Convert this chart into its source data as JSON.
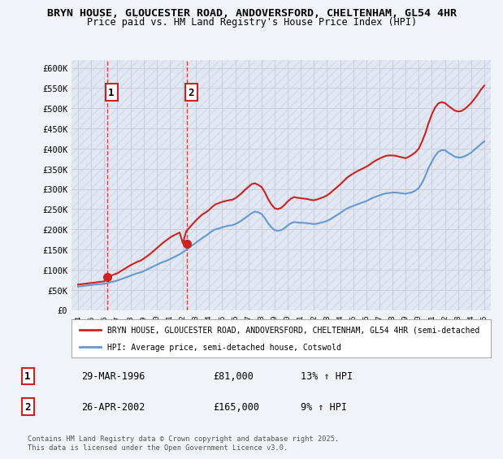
{
  "title_line1": "BRYN HOUSE, GLOUCESTER ROAD, ANDOVERSFORD, CHELTENHAM, GL54 4HR",
  "title_line2": "Price paid vs. HM Land Registry's House Price Index (HPI)",
  "ylabel_ticks": [
    "£0",
    "£50K",
    "£100K",
    "£150K",
    "£200K",
    "£250K",
    "£300K",
    "£350K",
    "£400K",
    "£450K",
    "£500K",
    "£550K",
    "£600K"
  ],
  "ytick_values": [
    0,
    50000,
    100000,
    150000,
    200000,
    250000,
    300000,
    350000,
    400000,
    450000,
    500000,
    550000,
    600000
  ],
  "ylim": [
    0,
    620000
  ],
  "xlim_start": 1993.5,
  "xlim_end": 2025.5,
  "xtick_years": [
    1994,
    1995,
    1996,
    1997,
    1998,
    1999,
    2000,
    2001,
    2002,
    2003,
    2004,
    2005,
    2006,
    2007,
    2008,
    2009,
    2010,
    2011,
    2012,
    2013,
    2014,
    2015,
    2016,
    2017,
    2018,
    2019,
    2020,
    2021,
    2022,
    2023,
    2024,
    2025
  ],
  "hpi_line_color": "#6699cc",
  "price_line_color": "#cc2222",
  "background_hatch_color": "#e8e8f0",
  "grid_color": "#ccccdd",
  "purchase_markers": [
    {
      "year": 1996.24,
      "price": 81000,
      "label": "1",
      "date": "29-MAR-1996",
      "amount": "£81,000",
      "hpi_note": "13% ↑ HPI"
    },
    {
      "year": 2002.32,
      "price": 165000,
      "label": "2",
      "date": "26-APR-2002",
      "amount": "£165,000",
      "hpi_note": "9% ↑ HPI"
    }
  ],
  "hpi_data_x": [
    1994.0,
    1994.25,
    1994.5,
    1994.75,
    1995.0,
    1995.25,
    1995.5,
    1995.75,
    1996.0,
    1996.25,
    1996.5,
    1996.75,
    1997.0,
    1997.25,
    1997.5,
    1997.75,
    1998.0,
    1998.25,
    1998.5,
    1998.75,
    1999.0,
    1999.25,
    1999.5,
    1999.75,
    2000.0,
    2000.25,
    2000.5,
    2000.75,
    2001.0,
    2001.25,
    2001.5,
    2001.75,
    2002.0,
    2002.25,
    2002.5,
    2002.75,
    2003.0,
    2003.25,
    2003.5,
    2003.75,
    2004.0,
    2004.25,
    2004.5,
    2004.75,
    2005.0,
    2005.25,
    2005.5,
    2005.75,
    2006.0,
    2006.25,
    2006.5,
    2006.75,
    2007.0,
    2007.25,
    2007.5,
    2007.75,
    2008.0,
    2008.25,
    2008.5,
    2008.75,
    2009.0,
    2009.25,
    2009.5,
    2009.75,
    2010.0,
    2010.25,
    2010.5,
    2010.75,
    2011.0,
    2011.25,
    2011.5,
    2011.75,
    2012.0,
    2012.25,
    2012.5,
    2012.75,
    2013.0,
    2013.25,
    2013.5,
    2013.75,
    2014.0,
    2014.25,
    2014.5,
    2014.75,
    2015.0,
    2015.25,
    2015.5,
    2015.75,
    2016.0,
    2016.25,
    2016.5,
    2016.75,
    2017.0,
    2017.25,
    2017.5,
    2017.75,
    2018.0,
    2018.25,
    2018.5,
    2018.75,
    2019.0,
    2019.25,
    2019.5,
    2019.75,
    2020.0,
    2020.25,
    2020.5,
    2020.75,
    2021.0,
    2021.25,
    2021.5,
    2021.75,
    2022.0,
    2022.25,
    2022.5,
    2022.75,
    2023.0,
    2023.25,
    2023.5,
    2023.75,
    2024.0,
    2024.25,
    2024.5,
    2024.75,
    2025.0
  ],
  "hpi_data_y": [
    58000,
    59000,
    60000,
    61000,
    62000,
    63000,
    63500,
    64000,
    65000,
    67000,
    69000,
    71000,
    73000,
    76000,
    79000,
    82000,
    85000,
    88000,
    91000,
    93000,
    96000,
    100000,
    104000,
    108000,
    112000,
    116000,
    119000,
    122000,
    126000,
    130000,
    134000,
    138000,
    143000,
    149000,
    155000,
    161000,
    167000,
    173000,
    179000,
    184000,
    190000,
    196000,
    200000,
    202000,
    205000,
    207000,
    209000,
    210000,
    213000,
    217000,
    222000,
    228000,
    234000,
    240000,
    244000,
    242000,
    238000,
    228000,
    215000,
    205000,
    198000,
    196000,
    198000,
    203000,
    210000,
    215000,
    218000,
    217000,
    216000,
    216000,
    215000,
    214000,
    213000,
    214000,
    216000,
    218000,
    221000,
    225000,
    230000,
    235000,
    240000,
    246000,
    251000,
    255000,
    258000,
    261000,
    264000,
    267000,
    270000,
    274000,
    278000,
    281000,
    284000,
    287000,
    289000,
    290000,
    291000,
    291000,
    290000,
    289000,
    288000,
    290000,
    292000,
    296000,
    302000,
    315000,
    332000,
    352000,
    368000,
    382000,
    392000,
    396000,
    396000,
    390000,
    385000,
    380000,
    378000,
    378000,
    381000,
    385000,
    390000,
    397000,
    404000,
    411000,
    418000
  ],
  "price_data_x": [
    1994.0,
    1994.25,
    1994.5,
    1994.75,
    1995.0,
    1995.25,
    1995.5,
    1995.75,
    1996.0,
    1996.25,
    1996.5,
    1996.75,
    1997.0,
    1997.25,
    1997.5,
    1997.75,
    1998.0,
    1998.25,
    1998.5,
    1998.75,
    1999.0,
    1999.25,
    1999.5,
    1999.75,
    2000.0,
    2000.25,
    2000.5,
    2000.75,
    2001.0,
    2001.25,
    2001.5,
    2001.75,
    2002.0,
    2002.25,
    2002.5,
    2002.75,
    2003.0,
    2003.25,
    2003.5,
    2003.75,
    2004.0,
    2004.25,
    2004.5,
    2004.75,
    2005.0,
    2005.25,
    2005.5,
    2005.75,
    2006.0,
    2006.25,
    2006.5,
    2006.75,
    2007.0,
    2007.25,
    2007.5,
    2007.75,
    2008.0,
    2008.25,
    2008.5,
    2008.75,
    2009.0,
    2009.25,
    2009.5,
    2009.75,
    2010.0,
    2010.25,
    2010.5,
    2010.75,
    2011.0,
    2011.25,
    2011.5,
    2011.75,
    2012.0,
    2012.25,
    2012.5,
    2012.75,
    2013.0,
    2013.25,
    2013.5,
    2013.75,
    2014.0,
    2014.25,
    2014.5,
    2014.75,
    2015.0,
    2015.25,
    2015.5,
    2015.75,
    2016.0,
    2016.25,
    2016.5,
    2016.75,
    2017.0,
    2017.25,
    2017.5,
    2017.75,
    2018.0,
    2018.25,
    2018.5,
    2018.75,
    2019.0,
    2019.25,
    2019.5,
    2019.75,
    2020.0,
    2020.25,
    2020.5,
    2020.75,
    2021.0,
    2021.25,
    2021.5,
    2021.75,
    2022.0,
    2022.25,
    2022.5,
    2022.75,
    2023.0,
    2023.25,
    2023.5,
    2023.75,
    2024.0,
    2024.25,
    2024.5,
    2024.75,
    2025.0
  ],
  "price_data_y": [
    63000,
    64000,
    65000,
    66000,
    67000,
    68000,
    69000,
    70000,
    71000,
    81000,
    85000,
    88000,
    91000,
    96000,
    101000,
    106000,
    111000,
    115000,
    119000,
    122000,
    127000,
    133000,
    139000,
    146000,
    153000,
    160000,
    167000,
    173000,
    179000,
    184000,
    188000,
    192000,
    165000,
    195000,
    204000,
    213000,
    222000,
    230000,
    237000,
    242000,
    248000,
    256000,
    262000,
    265000,
    268000,
    270000,
    272000,
    273000,
    277000,
    283000,
    290000,
    298000,
    305000,
    312000,
    314000,
    310000,
    305000,
    292000,
    275000,
    262000,
    252000,
    250000,
    253000,
    260000,
    269000,
    276000,
    280000,
    278000,
    277000,
    276000,
    275000,
    273000,
    272000,
    274000,
    277000,
    280000,
    284000,
    290000,
    297000,
    304000,
    311000,
    319000,
    327000,
    333000,
    338000,
    343000,
    347000,
    351000,
    355000,
    360000,
    366000,
    371000,
    375000,
    379000,
    382000,
    383000,
    383000,
    382000,
    380000,
    378000,
    376000,
    380000,
    385000,
    391000,
    400000,
    417000,
    438000,
    463000,
    485000,
    502000,
    512000,
    515000,
    513000,
    506000,
    500000,
    494000,
    492000,
    493000,
    498000,
    505000,
    513000,
    523000,
    534000,
    546000,
    556000
  ],
  "legend_label1": "BRYN HOUSE, GLOUCESTER ROAD, ANDOVERSFORD, CHELTENHAM, GL54 4HR (semi-detached",
  "legend_label2": "HPI: Average price, semi-detached house, Cotswold",
  "footnote": "Contains HM Land Registry data © Crown copyright and database right 2025.\nThis data is licensed under the Open Government Licence v3.0.",
  "bg_color": "#f0f0f8",
  "plot_bg_color": "#f8f8ff"
}
